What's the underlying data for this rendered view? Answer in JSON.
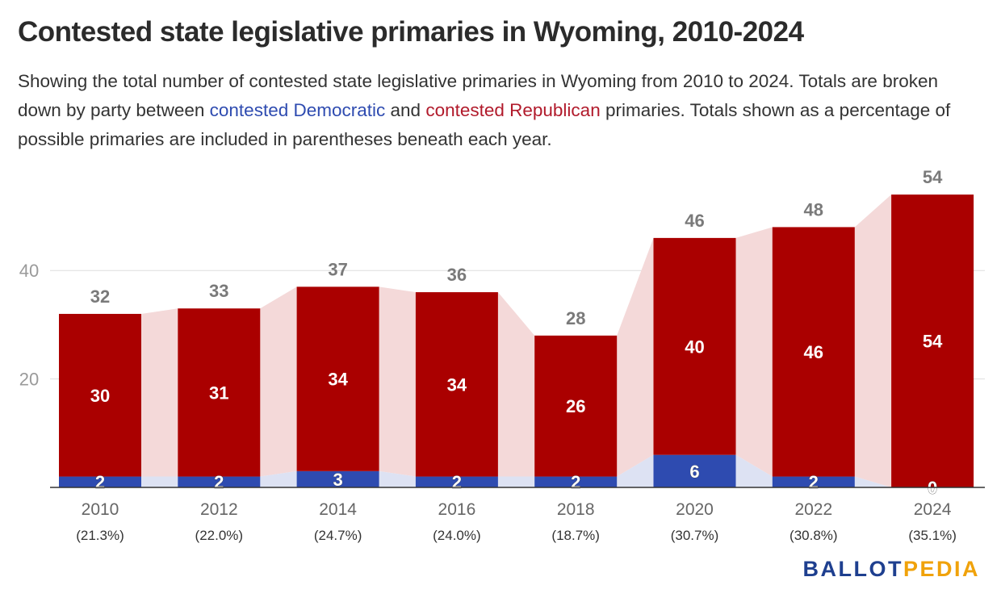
{
  "title": "Contested state legislative primaries in Wyoming, 2010-2024",
  "subtitle": {
    "part1": "Showing the total number of contested state legislative primaries in Wyoming from 2010 to 2024. Totals are broken down by party between ",
    "dem": "contested Democratic",
    "part2": " and ",
    "rep": "contested Republican",
    "part3": " primaries. Totals shown as a percentage of possible primaries are included in parentheses beneath each year."
  },
  "colors": {
    "democratic": "#2e4bb0",
    "democratic_area": "#dde2f3",
    "republican": "#aa0000",
    "republican_area": "#f4d9d9",
    "total_label": "#7a7a7a",
    "grid": "#dddddd",
    "axis": "#333333"
  },
  "chart_data": {
    "type": "bar",
    "stacked": true,
    "categories": [
      "2010",
      "2012",
      "2014",
      "2016",
      "2018",
      "2020",
      "2022",
      "2024"
    ],
    "category_sublabels": [
      "(21.3%)",
      "(22.0%)",
      "(24.7%)",
      "(24.0%)",
      "(18.7%)",
      "(30.7%)",
      "(30.8%)",
      "(35.1%)"
    ],
    "series": [
      {
        "name": "contested Democratic",
        "values": [
          2,
          2,
          3,
          2,
          2,
          6,
          2,
          0
        ]
      },
      {
        "name": "contested Republican",
        "values": [
          30,
          31,
          34,
          34,
          26,
          40,
          46,
          54
        ]
      }
    ],
    "totals": [
      32,
      33,
      37,
      36,
      28,
      46,
      48,
      54
    ],
    "yticks": [
      20,
      40
    ],
    "ylim": [
      0,
      57
    ],
    "grid": true,
    "legend": "inline-in-subtitle"
  },
  "logo": {
    "part1": "BALLOT",
    "part2": "PEDIA"
  }
}
